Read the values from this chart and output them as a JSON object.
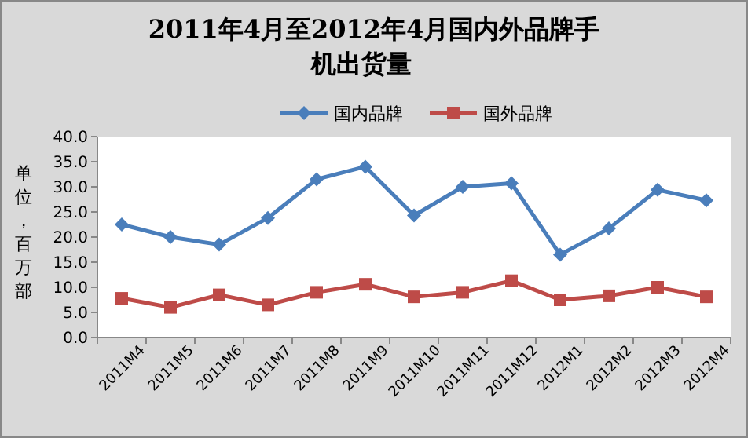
{
  "chart_data": {
    "type": "line",
    "title": "2011年4月至2012年4月国内外品牌手机出货量",
    "ylabel": "单位，百万部",
    "categories": [
      "2011M4",
      "2011M5",
      "2011M6",
      "2011M7",
      "2011M8",
      "2011M9",
      "2011M10",
      "2011M11",
      "2011M12",
      "2012M1",
      "2012M2",
      "2012M3",
      "2012M4"
    ],
    "series": [
      {
        "name": "国内品牌",
        "color": "#4a7ebb",
        "marker": "diamond",
        "values": [
          22.5,
          20.0,
          18.5,
          23.8,
          31.5,
          34.0,
          24.3,
          30.0,
          30.7,
          16.5,
          21.7,
          29.4,
          27.3
        ]
      },
      {
        "name": "国外品牌",
        "color": "#be4b48",
        "marker": "square",
        "values": [
          7.8,
          6.0,
          8.5,
          6.5,
          9.0,
          10.6,
          8.1,
          9.0,
          11.3,
          7.5,
          8.3,
          10.0,
          8.1
        ]
      }
    ],
    "ylim": [
      0,
      40
    ],
    "yticks": [
      {
        "value": 0,
        "label": "0.0"
      },
      {
        "value": 5,
        "label": "5.0"
      },
      {
        "value": 10,
        "label": "10.0"
      },
      {
        "value": 15,
        "label": "15.0"
      },
      {
        "value": 20,
        "label": "20.0"
      },
      {
        "value": 25,
        "label": "25.0"
      },
      {
        "value": 30,
        "label": "30.0"
      },
      {
        "value": 35,
        "label": "35.0"
      },
      {
        "value": 40,
        "label": "40.0"
      }
    ],
    "grid": false,
    "legend": "top",
    "line_style": "solid"
  }
}
